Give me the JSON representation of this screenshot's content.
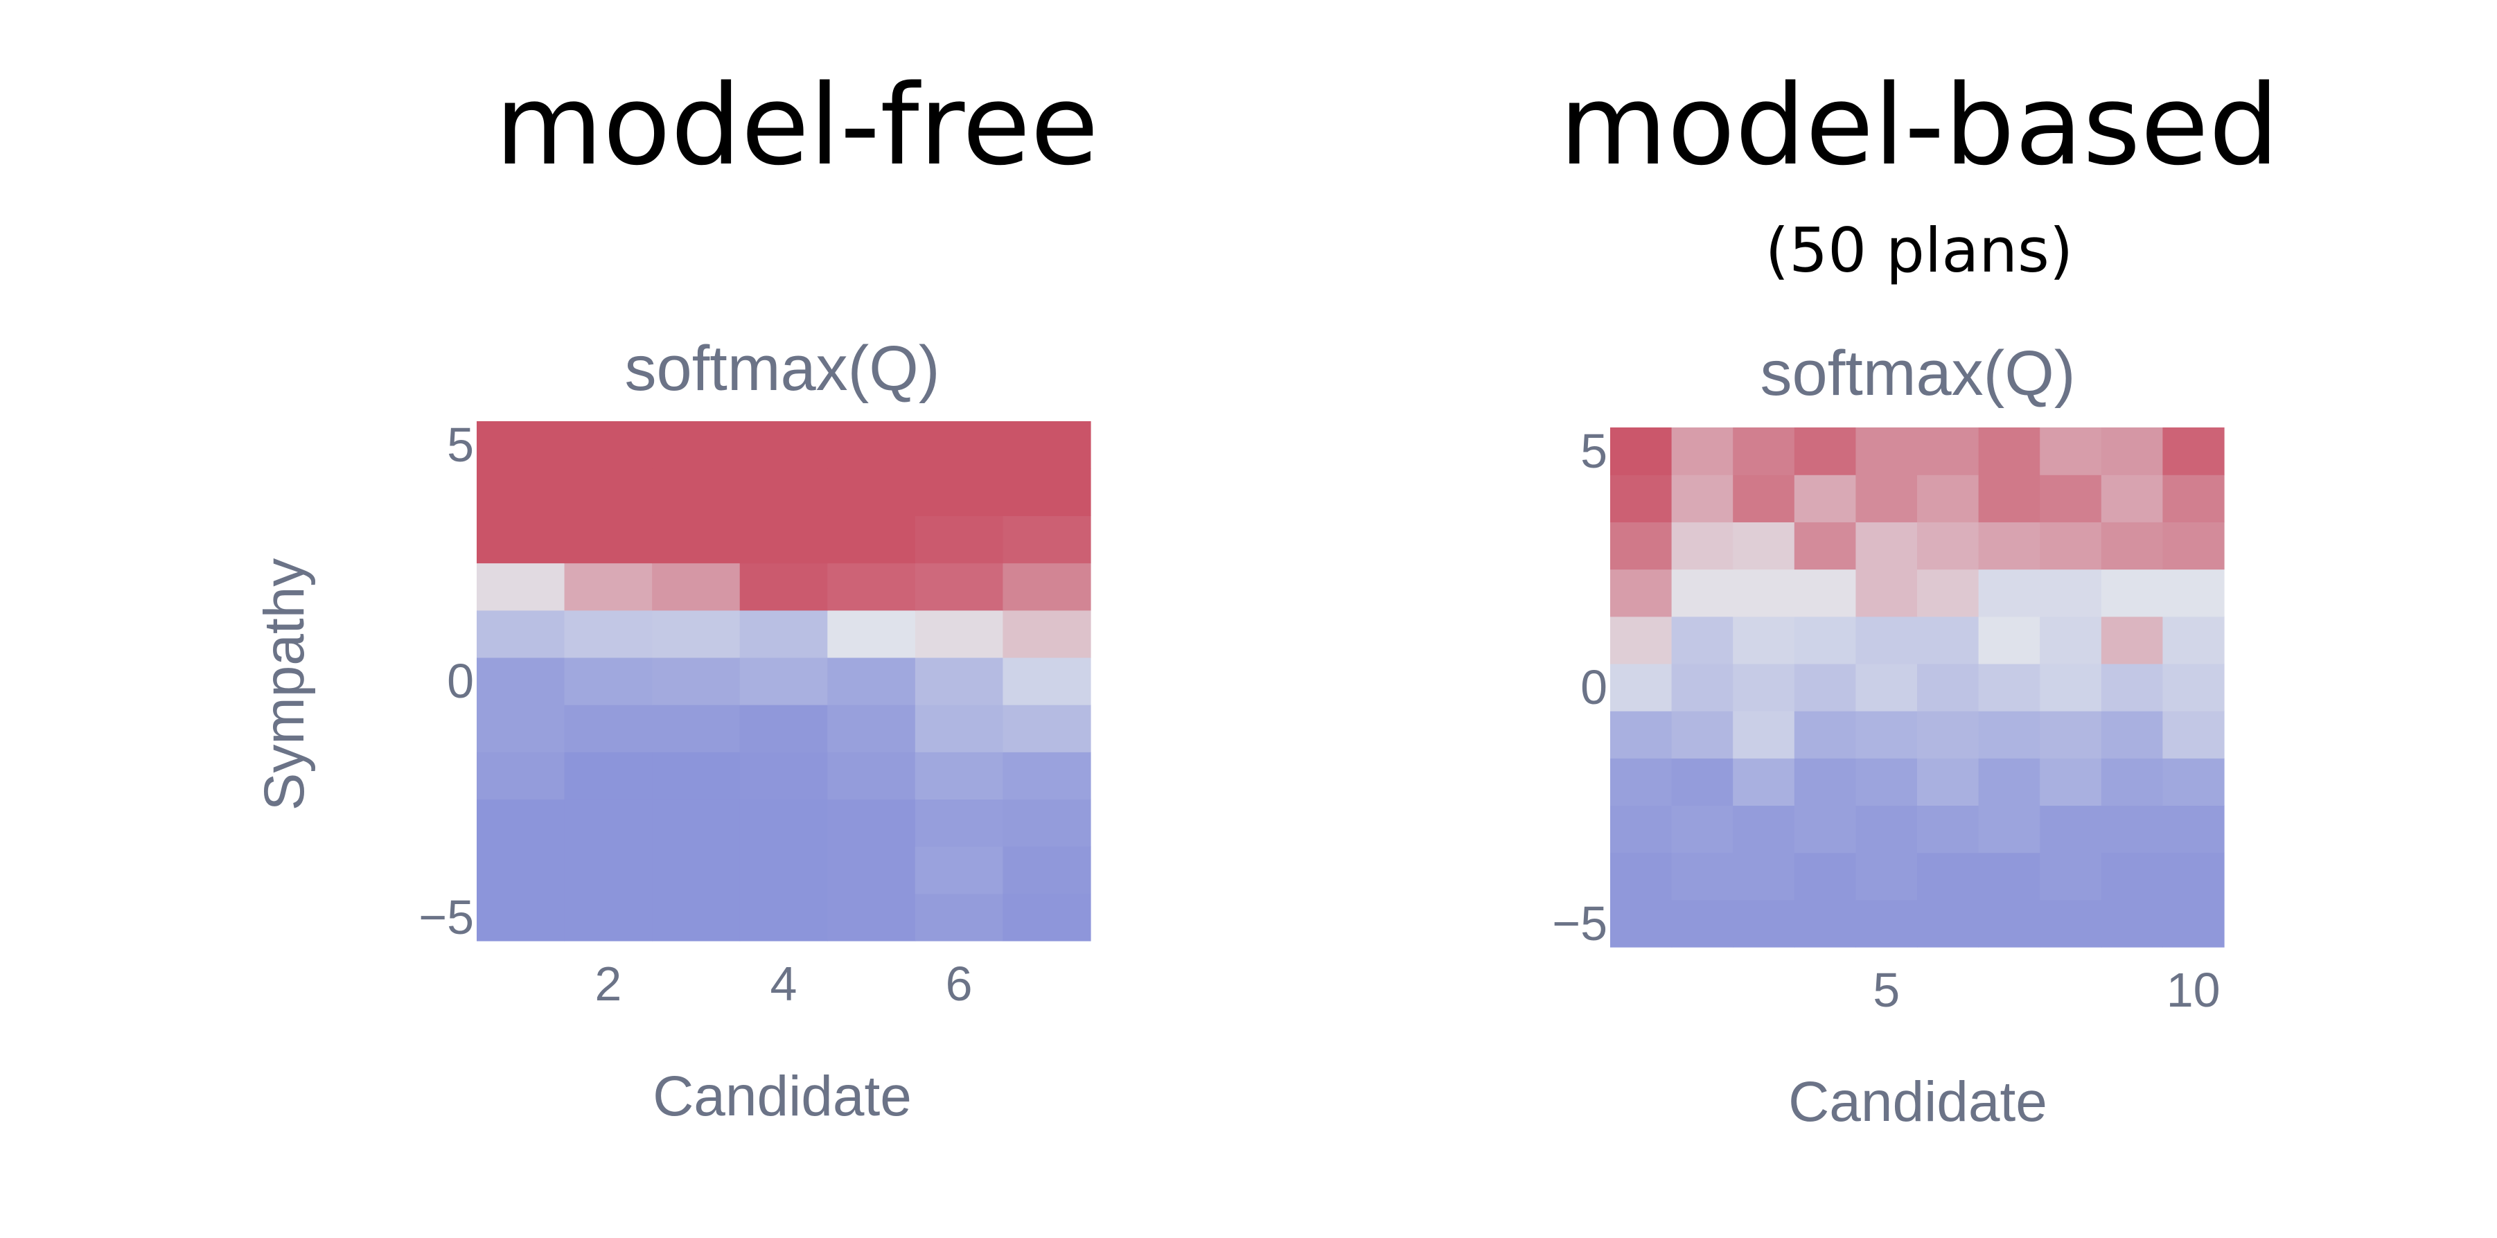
{
  "panels": [
    {
      "heading": "model-free",
      "subheading": ""
    },
    {
      "heading": "model-based",
      "subheading": "(50 plans)"
    }
  ],
  "colors": {
    "low": "#7b85d6",
    "mid": "#e3e6ec",
    "high": "#c94e63",
    "text_axis": "#6b7387"
  },
  "chart_data": [
    {
      "type": "heatmap",
      "title": "softmax(Q)",
      "xlabel": "Candidate",
      "ylabel": "Sympathy",
      "x": [
        1,
        2,
        3,
        4,
        5,
        6,
        7
      ],
      "y": [
        -5,
        -4,
        -3,
        -2,
        -1,
        0,
        1,
        2,
        3,
        4,
        5
      ],
      "zlim": [
        0,
        1
      ],
      "x_ticks": [
        2,
        4,
        6
      ],
      "x_tick_labels": [
        "2",
        "4",
        "6"
      ],
      "y_ticks": [
        -5,
        0,
        5
      ],
      "y_tick_labels": [
        "−5",
        "0",
        "5"
      ],
      "z": [
        [
          0.08,
          0.08,
          0.08,
          0.08,
          0.09,
          0.12,
          0.09
        ],
        [
          0.08,
          0.08,
          0.08,
          0.08,
          0.09,
          0.15,
          0.1
        ],
        [
          0.08,
          0.08,
          0.08,
          0.08,
          0.09,
          0.13,
          0.12
        ],
        [
          0.12,
          0.08,
          0.08,
          0.09,
          0.12,
          0.18,
          0.15
        ],
        [
          0.14,
          0.12,
          0.12,
          0.1,
          0.14,
          0.25,
          0.28
        ],
        [
          0.14,
          0.18,
          0.19,
          0.22,
          0.18,
          0.28,
          0.4
        ],
        [
          0.3,
          0.34,
          0.35,
          0.3,
          0.48,
          0.54,
          0.62
        ],
        [
          0.54,
          0.7,
          0.76,
          0.96,
          0.93,
          0.91,
          0.82
        ],
        [
          0.98,
          0.98,
          0.98,
          0.98,
          0.98,
          0.96,
          0.94
        ],
        [
          0.98,
          0.98,
          0.98,
          0.98,
          0.98,
          0.98,
          0.98
        ],
        [
          0.98,
          0.98,
          0.98,
          0.98,
          0.98,
          0.98,
          0.98
        ]
      ]
    },
    {
      "type": "heatmap",
      "title": "softmax(Q)",
      "xlabel": "Candidate",
      "ylabel": "",
      "x": [
        1,
        2,
        3,
        4,
        5,
        6,
        7,
        8,
        9,
        10
      ],
      "y": [
        -5,
        -4,
        -3,
        -2,
        -1,
        0,
        1,
        2,
        3,
        4,
        5
      ],
      "zlim": [
        0,
        1
      ],
      "x_ticks": [
        5,
        10
      ],
      "x_tick_labels": [
        "5",
        "10"
      ],
      "y_ticks": [
        -5,
        0,
        5
      ],
      "y_tick_labels": [
        "−5",
        "0",
        "5"
      ],
      "z": [
        [
          0.1,
          0.1,
          0.1,
          0.1,
          0.1,
          0.1,
          0.1,
          0.1,
          0.1,
          0.1
        ],
        [
          0.1,
          0.12,
          0.12,
          0.1,
          0.12,
          0.1,
          0.1,
          0.12,
          0.1,
          0.1
        ],
        [
          0.12,
          0.14,
          0.12,
          0.14,
          0.12,
          0.14,
          0.16,
          0.12,
          0.12,
          0.12
        ],
        [
          0.14,
          0.12,
          0.22,
          0.14,
          0.16,
          0.22,
          0.16,
          0.22,
          0.16,
          0.18
        ],
        [
          0.22,
          0.26,
          0.38,
          0.22,
          0.24,
          0.26,
          0.24,
          0.26,
          0.22,
          0.34
        ],
        [
          0.42,
          0.32,
          0.36,
          0.32,
          0.38,
          0.32,
          0.36,
          0.4,
          0.34,
          0.38
        ],
        [
          0.58,
          0.34,
          0.42,
          0.4,
          0.36,
          0.36,
          0.48,
          0.42,
          0.66,
          0.42
        ],
        [
          0.74,
          0.52,
          0.52,
          0.52,
          0.64,
          0.6,
          0.44,
          0.44,
          0.48,
          0.48
        ],
        [
          0.86,
          0.6,
          0.58,
          0.8,
          0.64,
          0.68,
          0.72,
          0.74,
          0.78,
          0.8
        ],
        [
          0.94,
          0.7,
          0.86,
          0.7,
          0.8,
          0.74,
          0.86,
          0.84,
          0.72,
          0.84
        ],
        [
          0.97,
          0.74,
          0.84,
          0.9,
          0.8,
          0.8,
          0.86,
          0.74,
          0.76,
          0.93
        ]
      ]
    }
  ]
}
